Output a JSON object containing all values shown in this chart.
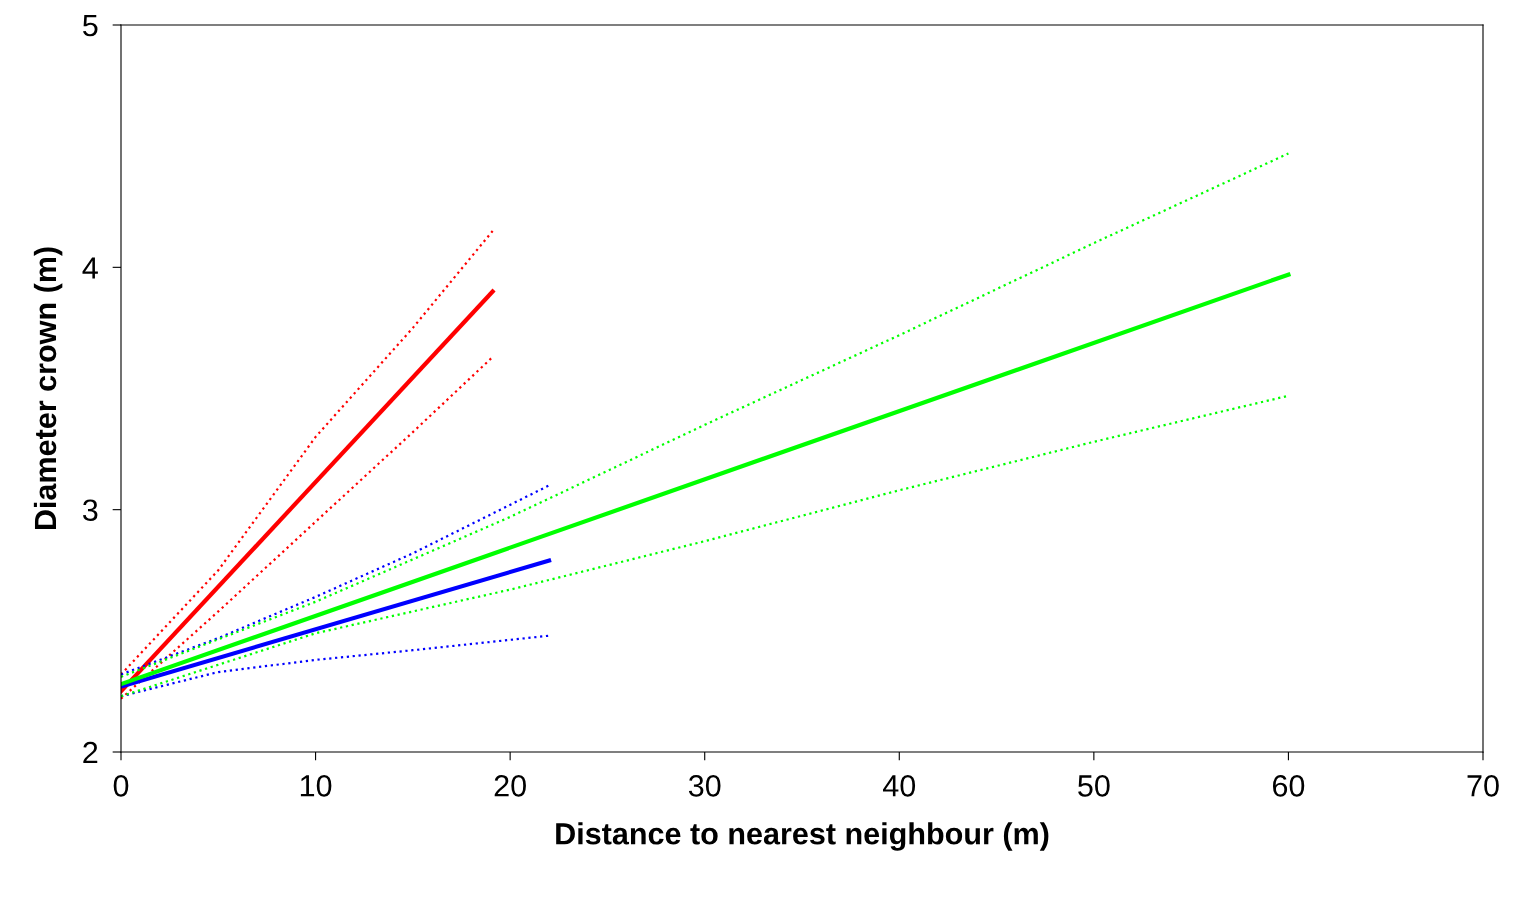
{
  "chart_data": {
    "type": "line",
    "xlabel": "Distance to nearest neighbour (m)",
    "ylabel": "Diameter crown (m)",
    "xlim": [
      0,
      70
    ],
    "xticks": [
      0,
      10,
      20,
      30,
      40,
      50,
      60,
      70
    ],
    "ylim": [
      2,
      5
    ],
    "yticks": [
      2,
      3,
      4,
      5
    ],
    "grid": false,
    "legend": false,
    "marker": "none",
    "series": [
      {
        "color": "#ff0000",
        "line_style": "solid",
        "x": [
          0,
          19.1
        ],
        "values": [
          2.25,
          3.9
        ]
      },
      {
        "color": "#ff0000",
        "line_style": "dotted",
        "x": [
          0,
          5,
          10,
          15,
          19.1
        ],
        "values": [
          2.32,
          2.75,
          3.3,
          3.75,
          4.15
        ]
      },
      {
        "color": "#ff0000",
        "line_style": "dotted",
        "x": [
          0,
          5,
          10,
          15,
          19.1
        ],
        "values": [
          2.22,
          2.58,
          2.95,
          3.32,
          3.63
        ]
      },
      {
        "color": "#0000ff",
        "line_style": "solid",
        "x": [
          0,
          22
        ],
        "values": [
          2.27,
          2.79
        ]
      },
      {
        "color": "#0000ff",
        "line_style": "dotted",
        "x": [
          0,
          5,
          10,
          15,
          22
        ],
        "values": [
          2.32,
          2.47,
          2.64,
          2.82,
          3.1
        ]
      },
      {
        "color": "#0000ff",
        "line_style": "dotted",
        "x": [
          0,
          5,
          10,
          15,
          22
        ],
        "values": [
          2.23,
          2.33,
          2.38,
          2.42,
          2.48
        ]
      },
      {
        "color": "#00ff00",
        "line_style": "solid",
        "x": [
          0,
          60
        ],
        "values": [
          2.28,
          3.97
        ]
      },
      {
        "color": "#00ff00",
        "line_style": "dotted",
        "x": [
          0,
          10,
          20,
          30,
          40,
          50,
          60
        ],
        "values": [
          2.31,
          2.62,
          2.97,
          3.35,
          3.72,
          4.1,
          4.47
        ]
      },
      {
        "color": "#00ff00",
        "line_style": "dotted",
        "x": [
          0,
          10,
          20,
          30,
          40,
          50,
          60
        ],
        "values": [
          2.23,
          2.49,
          2.67,
          2.87,
          3.08,
          3.28,
          3.47
        ]
      }
    ]
  }
}
